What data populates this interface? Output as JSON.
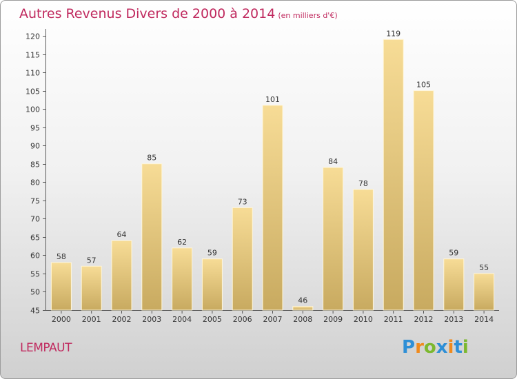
{
  "title": {
    "main": "Autres Revenus Divers de 2000 à 2014",
    "unit": "(en milliers d'€)"
  },
  "commune": "LEMPAUT",
  "logo": {
    "text": "Proxiti",
    "letters": [
      {
        "char": "P",
        "color": "#2e8fd6"
      },
      {
        "char": "r",
        "color": "#f08a1c"
      },
      {
        "char": "o",
        "color": "#7cb82f"
      },
      {
        "char": "x",
        "color": "#2e8fd6"
      },
      {
        "char": "i",
        "color": "#f08a1c"
      },
      {
        "char": "t",
        "color": "#2e8fd6"
      },
      {
        "char": "i",
        "color": "#7cb82f"
      }
    ]
  },
  "colors": {
    "title": "#c0295e",
    "bar_top": "#f7dc96",
    "bar_bottom": "#c8aa60"
  },
  "chart_data": {
    "type": "bar",
    "title": "Autres Revenus Divers de 2000 à 2014",
    "subtitle": "(en milliers d'€)",
    "xlabel": "",
    "ylabel": "",
    "categories": [
      "2000",
      "2001",
      "2002",
      "2003",
      "2004",
      "2005",
      "2006",
      "2007",
      "2008",
      "2009",
      "2010",
      "2011",
      "2012",
      "2013",
      "2014"
    ],
    "values": [
      58,
      57,
      64,
      85,
      62,
      59,
      73,
      101,
      46,
      84,
      78,
      119,
      105,
      59,
      55
    ],
    "ylim": [
      45,
      120
    ],
    "yticks": [
      45,
      50,
      55,
      60,
      65,
      70,
      75,
      80,
      85,
      90,
      95,
      100,
      105,
      110,
      115,
      120
    ],
    "grid": false,
    "legend": "none"
  }
}
